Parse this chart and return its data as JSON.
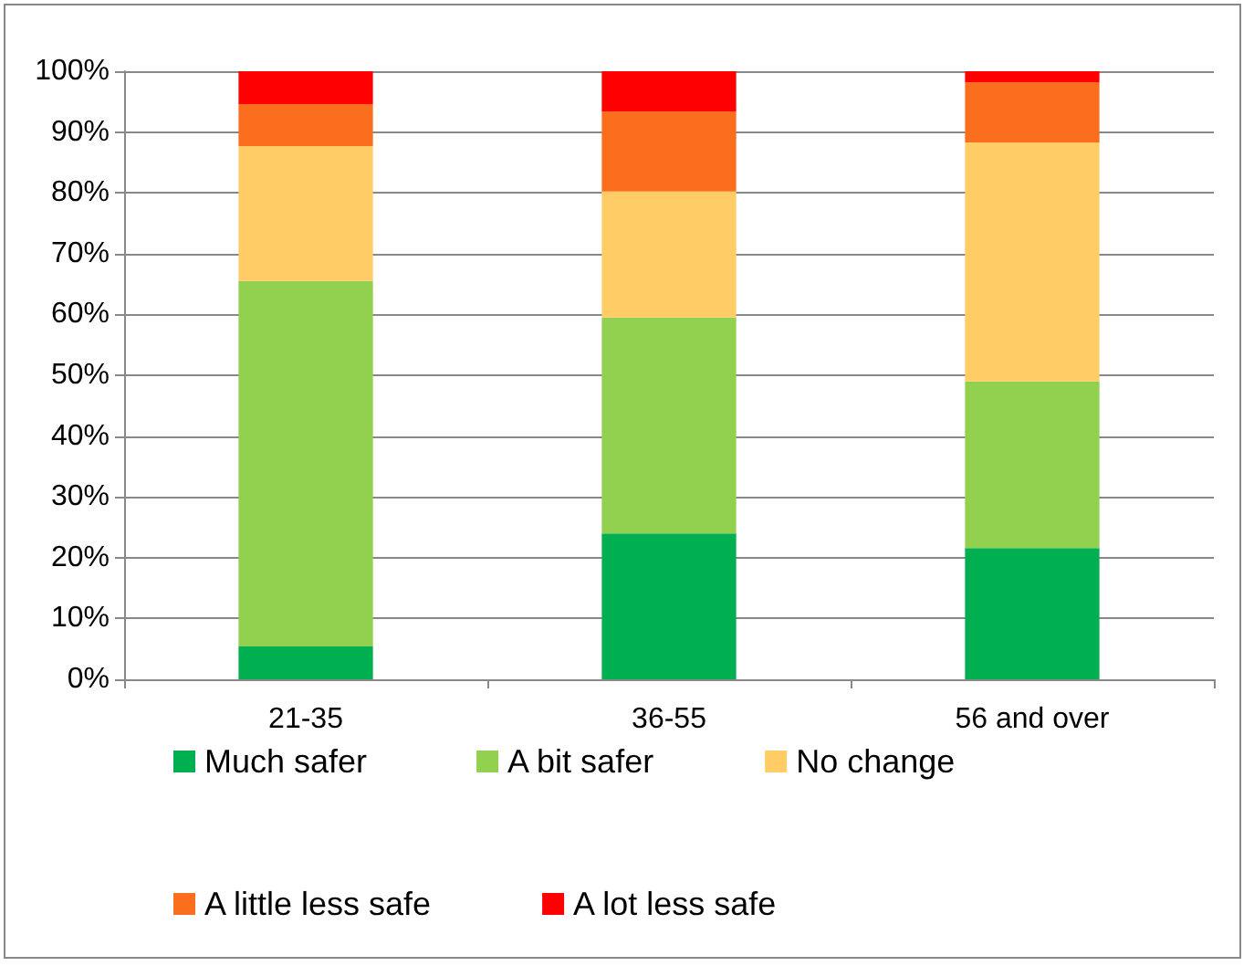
{
  "chart_data": {
    "type": "bar",
    "stacked": true,
    "categories": [
      "21-35",
      "36-55",
      "56 and over"
    ],
    "series": [
      {
        "name": "Much safer",
        "color": "#00b050",
        "values": [
          5.4,
          24,
          21.6
        ]
      },
      {
        "name": "A bit safer",
        "color": "#92d050",
        "values": [
          60.1,
          35.5,
          27.4
        ]
      },
      {
        "name": "No change",
        "color": "#ffcc66",
        "values": [
          22.2,
          20.7,
          39.3
        ]
      },
      {
        "name": "A little less safe",
        "color": "#fa6e1e",
        "values": [
          6.9,
          13.2,
          9.9
        ]
      },
      {
        "name": "A lot less safe",
        "color": "#ff0000",
        "values": [
          5.4,
          6.6,
          1.8
        ]
      }
    ],
    "ylim": [
      0,
      100
    ],
    "yticks": [
      {
        "value": 0,
        "label": "0%"
      },
      {
        "value": 10,
        "label": "10%"
      },
      {
        "value": 20,
        "label": "20%"
      },
      {
        "value": 30,
        "label": "30%"
      },
      {
        "value": 40,
        "label": "40%"
      },
      {
        "value": 50,
        "label": "50%"
      },
      {
        "value": 60,
        "label": "60%"
      },
      {
        "value": 70,
        "label": "70%"
      },
      {
        "value": 80,
        "label": "80%"
      },
      {
        "value": 90,
        "label": "90%"
      },
      {
        "value": 100,
        "label": "100%"
      }
    ],
    "grid": "y",
    "legend": "bottom"
  }
}
